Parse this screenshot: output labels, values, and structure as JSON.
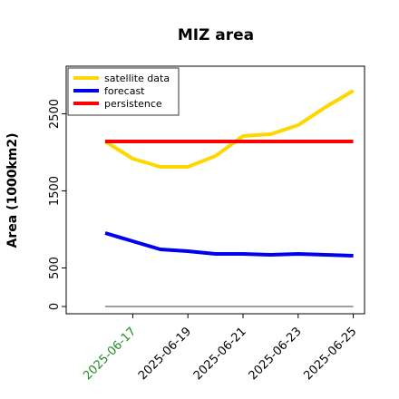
{
  "chart_data": {
    "type": "line",
    "title": "MIZ area",
    "ylabel": "Area (1000km2)",
    "x": [
      "2025-06-16",
      "2025-06-17",
      "2025-06-18",
      "2025-06-19",
      "2025-06-20",
      "2025-06-21",
      "2025-06-22",
      "2025-06-23",
      "2025-06-24",
      "2025-06-25"
    ],
    "series": [
      {
        "name": "satellite data",
        "color": "#ffd700",
        "values": [
          2141,
          1918,
          1812,
          1812,
          1953,
          2212,
          2235,
          2353,
          2588,
          2800
        ]
      },
      {
        "name": "forecast",
        "color": "#0000ee",
        "values": [
          953,
          847,
          741,
          718,
          682,
          682,
          671,
          682,
          671,
          659
        ]
      },
      {
        "name": "persistence",
        "color": "#ff0000",
        "values": [
          2141,
          2141,
          2141,
          2141,
          2141,
          2141,
          2141,
          2141,
          2141,
          2141
        ]
      }
    ],
    "hline": {
      "value": 0,
      "color": "#808080"
    },
    "xticks": [
      "2025-06-17",
      "2025-06-19",
      "2025-06-21",
      "2025-06-23",
      "2025-06-25"
    ],
    "xtick_colors": [
      "#228b22",
      "#000000",
      "#000000",
      "#000000",
      "#000000"
    ],
    "ylim": [
      -94,
      3118
    ],
    "yticks": [
      0,
      500,
      1500,
      2500
    ],
    "legend": "upper left"
  }
}
